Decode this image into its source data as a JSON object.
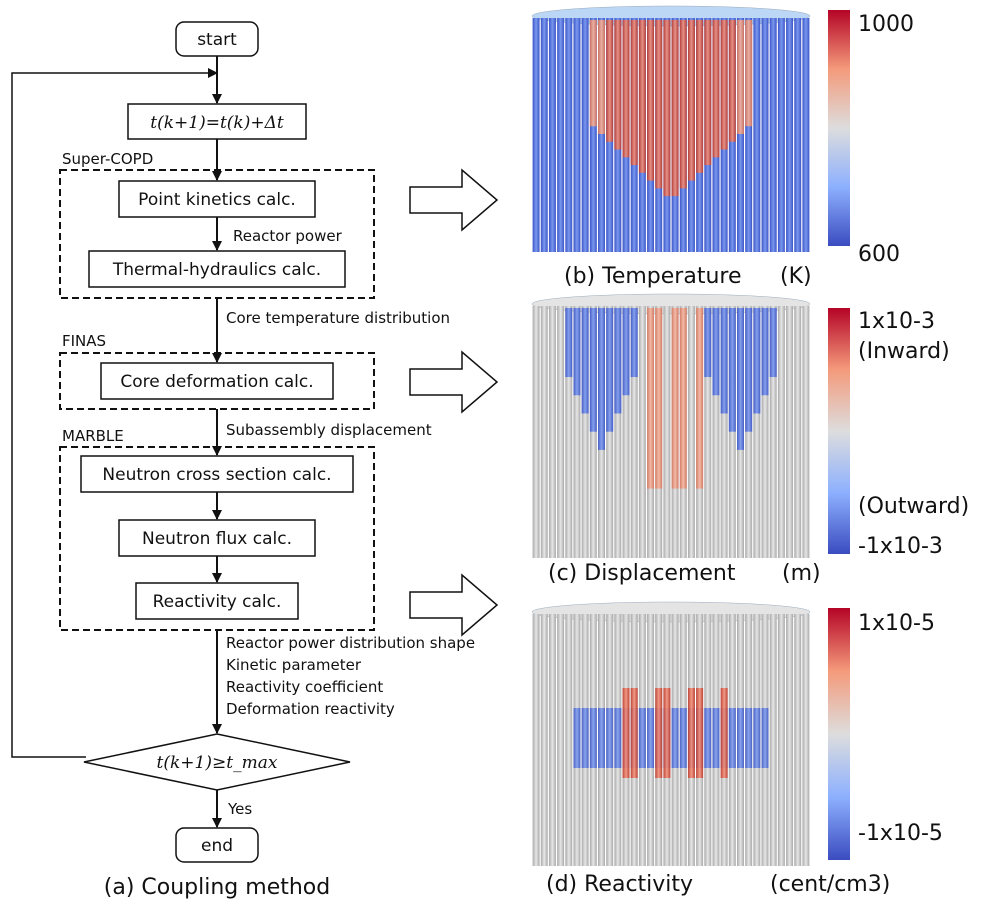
{
  "flow": {
    "start": "start",
    "end": "end",
    "time_step": "t(k+1)=t(k)+Δt",
    "decision": "t(k+1)≥t_max",
    "decision_yes": "Yes",
    "groups": {
      "super_copd": "Super-COPD",
      "finas": "FINAS",
      "marble": "MARBLE"
    },
    "boxes": {
      "point_kinetics": "Point kinetics calc.",
      "thermal_hydraulics": "Thermal-hydraulics calc.",
      "core_deformation": "Core deformation calc.",
      "neutron_xs": "Neutron cross section calc.",
      "neutron_flux": "Neutron flux calc.",
      "reactivity": "Reactivity calc."
    },
    "labels": {
      "reactor_power": "Reactor power",
      "core_temp": "Core temperature distribution",
      "subassembly_disp": "Subassembly displacement",
      "out_1": "Reactor power distribution shape",
      "out_2": "Kinetic parameter",
      "out_3": "Reactivity coefficient",
      "out_4": "Deformation reactivity"
    },
    "caption": "(a) Coupling method"
  },
  "panels": {
    "temperature": {
      "caption": "(b) Temperature",
      "unit": "(K)",
      "max": "1000",
      "min": "600"
    },
    "displacement": {
      "caption": "(c) Displacement",
      "unit": "(m)",
      "max": "1x10-3",
      "min": "-1x10-3",
      "max_note": "(Inward)",
      "min_note": "(Outward)"
    },
    "reactivity": {
      "caption": "(d) Reactivity",
      "unit": "(cent/cm3)",
      "max": "1x10-5",
      "min": "-1x10-5"
    }
  },
  "colors": {
    "cold": "#3b4cc0",
    "neutral": "#dddddd",
    "hot": "#b40426",
    "rod_gray": "#c8c8c8"
  }
}
